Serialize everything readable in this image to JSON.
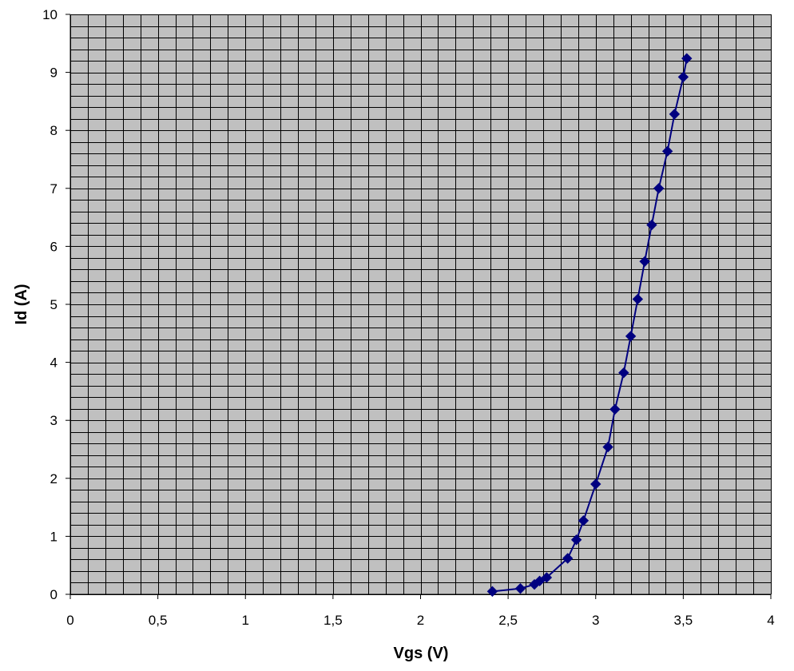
{
  "chart_data": {
    "type": "scatter",
    "title": "",
    "xlabel": "Vgs (V)",
    "ylabel": "Id (A)",
    "xlim": [
      0,
      4
    ],
    "ylim": [
      0,
      10
    ],
    "x_ticks": [
      "0",
      "0,5",
      "1",
      "1,5",
      "2",
      "2,5",
      "3",
      "3,5",
      "4"
    ],
    "y_ticks": [
      "0",
      "1",
      "2",
      "3",
      "4",
      "5",
      "6",
      "7",
      "8",
      "9",
      "10"
    ],
    "grid": true,
    "plot_background": "#c0c0c0",
    "grid_color": "#000000",
    "series": [
      {
        "color": "#000080",
        "marker": "diamond",
        "connected": true,
        "points": [
          [
            2.41,
            0.05
          ],
          [
            2.57,
            0.1
          ],
          [
            2.65,
            0.17
          ],
          [
            2.68,
            0.23
          ],
          [
            2.72,
            0.29
          ],
          [
            2.84,
            0.62
          ],
          [
            2.89,
            0.94
          ],
          [
            2.93,
            1.27
          ],
          [
            3.0,
            1.9
          ],
          [
            3.07,
            2.54
          ],
          [
            3.11,
            3.19
          ],
          [
            3.16,
            3.82
          ],
          [
            3.2,
            4.45
          ],
          [
            3.24,
            5.09
          ],
          [
            3.28,
            5.74
          ],
          [
            3.32,
            6.37
          ],
          [
            3.36,
            7.0
          ],
          [
            3.41,
            7.64
          ],
          [
            3.45,
            8.28
          ],
          [
            3.5,
            8.92
          ],
          [
            3.52,
            9.24
          ]
        ]
      }
    ]
  }
}
